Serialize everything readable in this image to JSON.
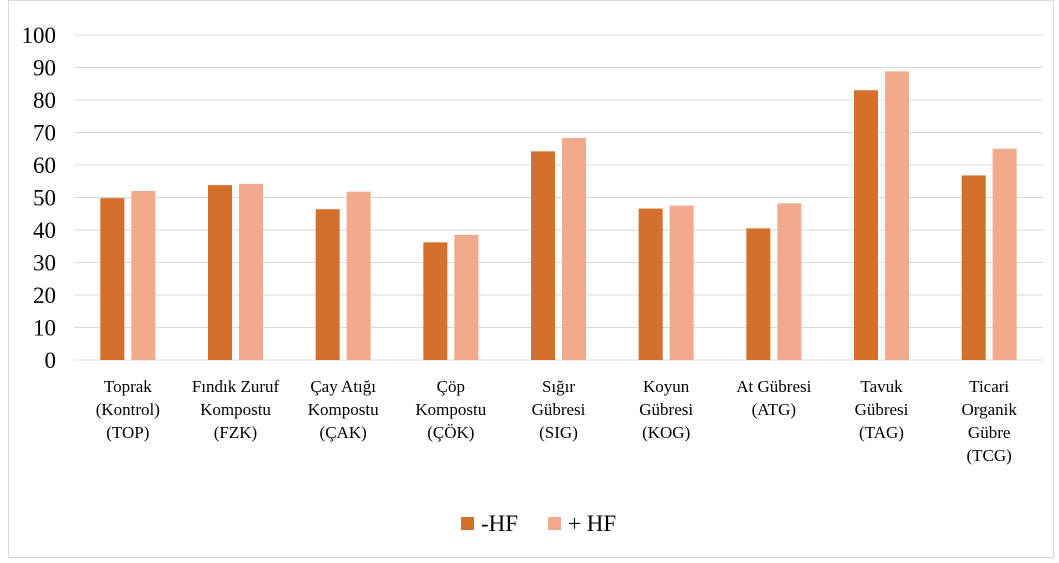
{
  "chart_data": {
    "type": "bar",
    "categories": [
      [
        "Toprak",
        "(Kontrol)",
        "(TOP)"
      ],
      [
        "Fındık Zuruf",
        "Kompostu",
        "(FZK)"
      ],
      [
        "Çay Atığı",
        "Kompostu",
        "(ÇAK)"
      ],
      [
        "Çöp",
        "Kompostu",
        "(ÇÖK)"
      ],
      [
        "Sığır",
        "Gübresi",
        "(SIG)"
      ],
      [
        "Koyun",
        "Gübresi",
        "(KOG)"
      ],
      [
        "At Gübresi",
        "(ATG)"
      ],
      [
        "Tavuk",
        "Gübresi",
        "(TAG)"
      ],
      [
        "Ticari",
        "Organik",
        "Gübre",
        "(TCG)"
      ]
    ],
    "series": [
      {
        "name": "-HF",
        "color": "#d4702c",
        "values": [
          49.8,
          53.8,
          46.4,
          36.2,
          64.2,
          46.6,
          40.5,
          83.0,
          56.8
        ]
      },
      {
        "name": "+ HF",
        "color": "#f2aa8c",
        "values": [
          52.0,
          54.2,
          51.8,
          38.5,
          68.3,
          47.5,
          48.2,
          88.8,
          65.0
        ]
      }
    ],
    "yticks": [
      0,
      10,
      20,
      30,
      40,
      50,
      60,
      70,
      80,
      90,
      100
    ],
    "ylim": [
      0,
      100
    ],
    "grid": true,
    "legend": "bottom-center",
    "title": "",
    "xlabel": "",
    "ylabel": ""
  }
}
